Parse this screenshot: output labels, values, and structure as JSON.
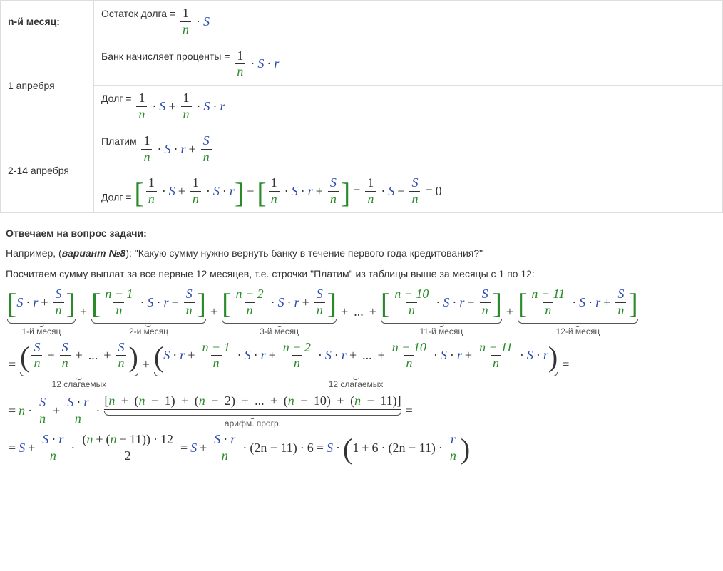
{
  "colors": {
    "var_S": "#2a4ab0",
    "var_r": "#2a4ab0",
    "var_n": "#2a8a2a",
    "bracket": "#2a8a2a",
    "border": "#dddddd",
    "text": "#333333"
  },
  "table": {
    "r1_label": "n-й месяц:",
    "r1_text": "Остаток долга =",
    "r2_label": "1 апребря",
    "r2_text": "Банк начисляет проценты =",
    "r3_text": "Долг =",
    "r4_label": "2-14 апребря",
    "r4_text": "Платим",
    "r5_text": "Долг ="
  },
  "section_title": "Отвечаем на вопрос задачи:",
  "para1_prefix": "Например, (",
  "para1_variant": "вариант №8",
  "para1_rest": "): \"Какую сумму нужно вернуть банку в течение первого года кредитования?\"",
  "para2": "Посчитаем сумму выплат за все первые 12 месяцев, т.е. строчки \"Платим\" из таблицы выше за месяцы с 1 по 12:",
  "ub": {
    "m1": "1-й месяц",
    "m2": "2-й месяц",
    "m3": "3-й месяц",
    "m11": "11-й месяц",
    "m12": "12-й месяц",
    "s12a": "12 слагаемых",
    "s12b": "12 слагаемых",
    "arith": "арифм. прогр."
  },
  "sym": {
    "S": "S",
    "r": "r",
    "n": "n",
    "one": "1",
    "two": "2",
    "six": "6",
    "ten": "10",
    "eleven": "11",
    "twelve": "12",
    "zero": "0",
    "nm1": "n − 1",
    "nm2": "n − 2",
    "nm10": "n − 10",
    "nm11": "n − 11",
    "twonm11": "2n − 11",
    "dots": "...",
    "plus": "+",
    "minus": "−",
    "eq": "=",
    "cdot": "·"
  }
}
